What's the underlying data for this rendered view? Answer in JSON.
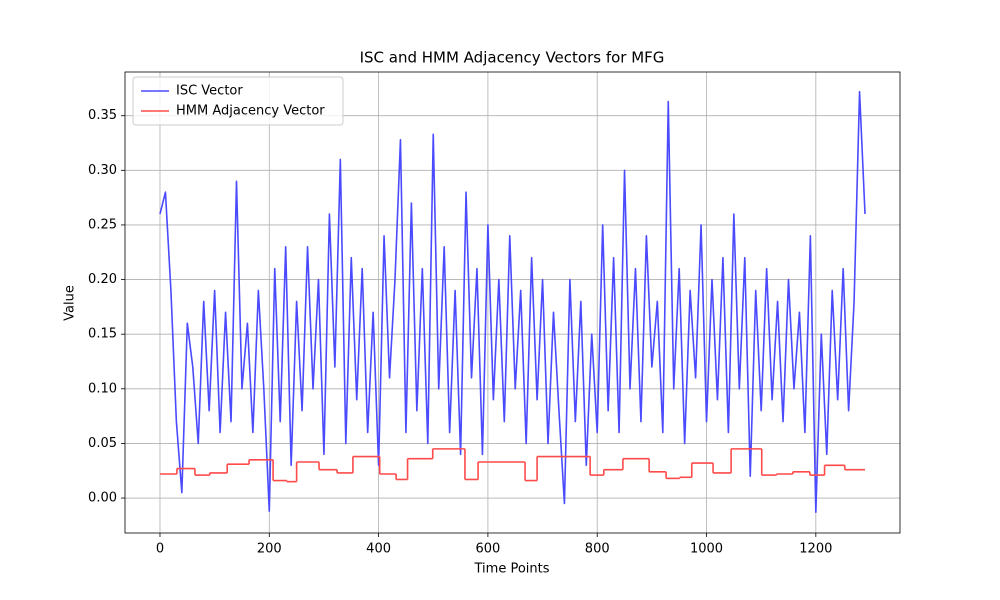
{
  "chart_data": {
    "type": "line",
    "title": "ISC and HMM Adjacency Vectors for MFG",
    "xlabel": "Time Points",
    "ylabel": "Value",
    "xlim": [
      -64,
      1354
    ],
    "ylim": [
      -0.032,
      0.39
    ],
    "xticks": [
      0,
      200,
      400,
      600,
      800,
      1000,
      1200
    ],
    "yticks": [
      {
        "value": 0,
        "label": "0.00"
      },
      {
        "value": 0.05,
        "label": "0.05"
      },
      {
        "value": 0.1,
        "label": "0.10"
      },
      {
        "value": 0.15,
        "label": "0.15"
      },
      {
        "value": 0.2,
        "label": "0.20"
      },
      {
        "value": 0.25,
        "label": "0.25"
      },
      {
        "value": 0.3,
        "label": "0.30"
      },
      {
        "value": 0.35,
        "label": "0.35"
      }
    ],
    "grid": true,
    "legend": "upper left",
    "series": [
      {
        "name": "ISC Vector",
        "color": "#4a4aff",
        "drawstyle": "default",
        "x": [
          0,
          10,
          20,
          30,
          40,
          50,
          60,
          70,
          80,
          90,
          100,
          110,
          120,
          130,
          140,
          150,
          160,
          170,
          180,
          190,
          200,
          210,
          220,
          230,
          240,
          250,
          260,
          270,
          280,
          290,
          300,
          310,
          320,
          330,
          340,
          350,
          360,
          370,
          380,
          390,
          400,
          410,
          420,
          430,
          440,
          450,
          460,
          470,
          480,
          490,
          500,
          510,
          520,
          530,
          540,
          550,
          560,
          570,
          580,
          590,
          600,
          610,
          620,
          630,
          640,
          650,
          660,
          670,
          680,
          690,
          700,
          710,
          720,
          730,
          740,
          750,
          760,
          770,
          780,
          790,
          800,
          810,
          820,
          830,
          840,
          850,
          860,
          870,
          880,
          890,
          900,
          910,
          920,
          930,
          940,
          950,
          960,
          970,
          980,
          990,
          1000,
          1010,
          1020,
          1030,
          1040,
          1050,
          1060,
          1070,
          1080,
          1090,
          1100,
          1110,
          1120,
          1130,
          1140,
          1150,
          1160,
          1170,
          1180,
          1190,
          1200,
          1210,
          1220,
          1230,
          1240,
          1250,
          1260,
          1270,
          1280,
          1290
        ],
        "values": [
          0.26,
          0.28,
          0.19,
          0.07,
          0.005,
          0.16,
          0.12,
          0.05,
          0.18,
          0.08,
          0.19,
          0.06,
          0.17,
          0.07,
          0.29,
          0.1,
          0.16,
          0.06,
          0.19,
          0.1,
          -0.012,
          0.21,
          0.07,
          0.23,
          0.03,
          0.18,
          0.08,
          0.23,
          0.1,
          0.2,
          0.04,
          0.26,
          0.12,
          0.31,
          0.05,
          0.22,
          0.09,
          0.21,
          0.06,
          0.17,
          0.03,
          0.24,
          0.11,
          0.2,
          0.328,
          0.06,
          0.27,
          0.08,
          0.21,
          0.05,
          0.333,
          0.1,
          0.23,
          0.06,
          0.19,
          0.04,
          0.28,
          0.11,
          0.21,
          0.04,
          0.25,
          0.09,
          0.2,
          0.07,
          0.24,
          0.1,
          0.19,
          0.05,
          0.22,
          0.09,
          0.2,
          0.05,
          0.17,
          0.08,
          -0.005,
          0.2,
          0.07,
          0.18,
          0.03,
          0.15,
          0.06,
          0.25,
          0.08,
          0.22,
          0.06,
          0.3,
          0.1,
          0.21,
          0.07,
          0.24,
          0.12,
          0.18,
          0.06,
          0.363,
          0.1,
          0.21,
          0.05,
          0.19,
          0.11,
          0.25,
          0.07,
          0.2,
          0.09,
          0.22,
          0.06,
          0.26,
          0.1,
          0.22,
          0.02,
          0.19,
          0.08,
          0.21,
          0.09,
          0.18,
          0.07,
          0.2,
          0.1,
          0.17,
          0.06,
          0.24,
          -0.013,
          0.15,
          0.04,
          0.19,
          0.09,
          0.21,
          0.08,
          0.18,
          0.372,
          0.26
        ]
      },
      {
        "name": "HMM Adjacency Vector",
        "color": "#ff4a4a",
        "drawstyle": "steps",
        "edges": [
          0,
          31,
          64,
          91,
          123,
          163,
          207,
          232,
          250,
          291,
          324,
          353,
          402,
          432,
          453,
          499,
          558,
          582,
          668,
          690,
          787,
          812,
          847,
          895,
          926,
          951,
          973,
          1012,
          1045,
          1101,
          1128,
          1158,
          1189,
          1216,
          1253,
          1290
        ],
        "values": [
          0.022,
          0.027,
          0.021,
          0.023,
          0.031,
          0.035,
          0.016,
          0.015,
          0.033,
          0.026,
          0.023,
          0.038,
          0.022,
          0.017,
          0.036,
          0.045,
          0.017,
          0.033,
          0.016,
          0.038,
          0.021,
          0.026,
          0.036,
          0.024,
          0.018,
          0.019,
          0.032,
          0.023,
          0.045,
          0.021,
          0.022,
          0.024,
          0.021,
          0.03,
          0.026
        ]
      }
    ]
  }
}
